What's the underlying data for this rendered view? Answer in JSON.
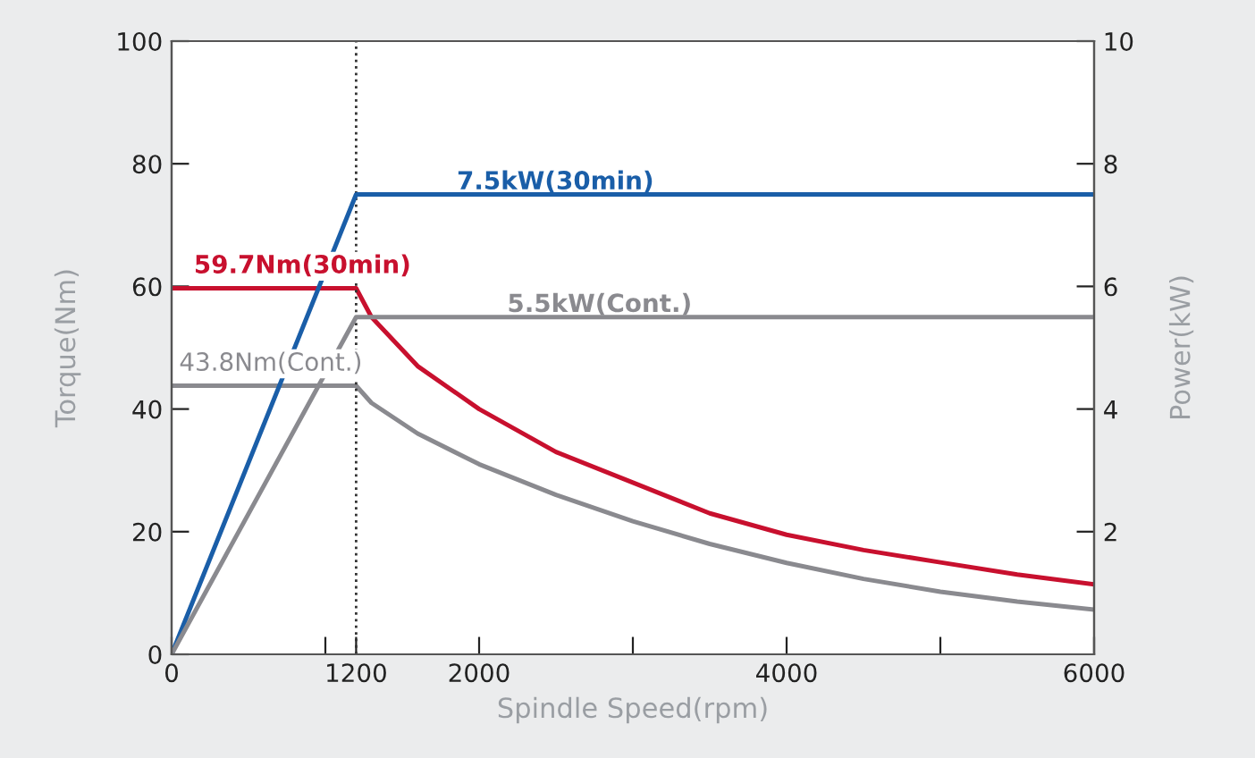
{
  "chart_data": {
    "type": "line",
    "xlabel": "Spindle Speed(rpm)",
    "ylabel": "Torque(Nm)",
    "y2label": "Power(kW)",
    "xlim": [
      0,
      6000
    ],
    "xticks": [
      0,
      {
        "value": 1000,
        "label": null
      },
      1200,
      2000,
      {
        "value": 3000,
        "label": null
      },
      4000,
      {
        "value": 5000,
        "label": null
      },
      6000
    ],
    "ylim": [
      0,
      100
    ],
    "yticks": [
      0,
      20,
      40,
      60,
      80,
      100
    ],
    "y2lim": [
      0,
      10
    ],
    "y2ticks": [
      2,
      4,
      6,
      8,
      10
    ],
    "grid": false,
    "legend": false,
    "marker": "none",
    "line_style": "solid",
    "ref_lines": [
      {
        "axis": "x",
        "value": 1200,
        "label": null,
        "color": "#333333",
        "line_style": "dotted"
      }
    ],
    "series": [
      {
        "name": "7.5kW(30min)",
        "color": "#1a5ea8",
        "axis": "y2",
        "x": [
          0,
          1200,
          6000
        ],
        "values": [
          0,
          7.5,
          7.5
        ]
      },
      {
        "name": "5.5kW(Cont.)",
        "color": "#8a8a8f",
        "axis": "y2",
        "x": [
          0,
          1200,
          6000
        ],
        "values": [
          0,
          5.5,
          5.5
        ]
      },
      {
        "name": "59.7Nm(30min)",
        "color": "#c8102e",
        "x": [
          0,
          1200,
          1300,
          1600,
          2000,
          2500,
          3000,
          3500,
          4000,
          4500,
          5000,
          5500,
          6000
        ],
        "values": [
          59.7,
          59.7,
          55,
          47,
          40,
          33,
          28,
          23,
          19.5,
          17,
          15,
          13,
          11.4
        ]
      },
      {
        "name": "43.8Nm(Cont.)",
        "color": "#8a8a8f",
        "x": [
          0,
          1200,
          1300,
          1600,
          2000,
          2500,
          3000,
          3500,
          4000,
          4500,
          5000,
          5500,
          6000
        ],
        "values": [
          43.8,
          43.8,
          41,
          36,
          31,
          26,
          21.7,
          18,
          14.9,
          12.3,
          10.2,
          8.6,
          7.3
        ]
      }
    ]
  }
}
